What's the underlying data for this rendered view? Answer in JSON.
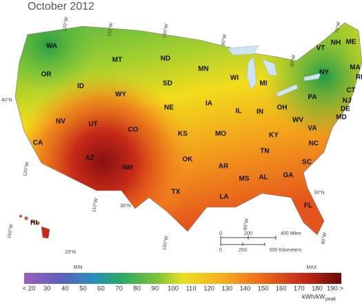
{
  "title": "October 2012",
  "states": [
    "WA",
    "OR",
    "ID",
    "MT",
    "WY",
    "ND",
    "SD",
    "NE",
    "NV",
    "UT",
    "CO",
    "CA",
    "AZ",
    "NM",
    "KS",
    "OK",
    "TX",
    "MN",
    "IA",
    "MO",
    "AR",
    "LA",
    "WI",
    "IL",
    "MI",
    "IN",
    "KY",
    "TN",
    "MS",
    "AL",
    "GA",
    "FL",
    "SC",
    "NC",
    "VA",
    "WV",
    "OH",
    "PA",
    "NY",
    "VT",
    "NH",
    "ME",
    "MA",
    "RI",
    "CT",
    "NJ",
    "DE",
    "MD",
    "HI"
  ],
  "graticule": [
    "120°W",
    "110°W",
    "100°W",
    "90°W",
    "80°W",
    "70°W",
    "40°N",
    "30°N",
    "30°N",
    "20°N",
    "160°W",
    "120°W",
    "110°W",
    "100°W",
    "90°W",
    "80°W"
  ],
  "scale_bar": {
    "miles": [
      "0",
      "200",
      "400 Miles"
    ],
    "kilometers": [
      "0",
      "250",
      "500 Kilometers"
    ]
  },
  "legend": {
    "min": "MIN",
    "max": "MAX",
    "ticks": [
      "< 20",
      "30",
      "40",
      "50",
      "60",
      "70",
      "80",
      "90",
      "100",
      "110",
      "120",
      "130",
      "140",
      "150",
      "160",
      "170",
      "180",
      "190 >"
    ],
    "unit": "kWh/kW",
    "unit_sub": "peak"
  }
}
